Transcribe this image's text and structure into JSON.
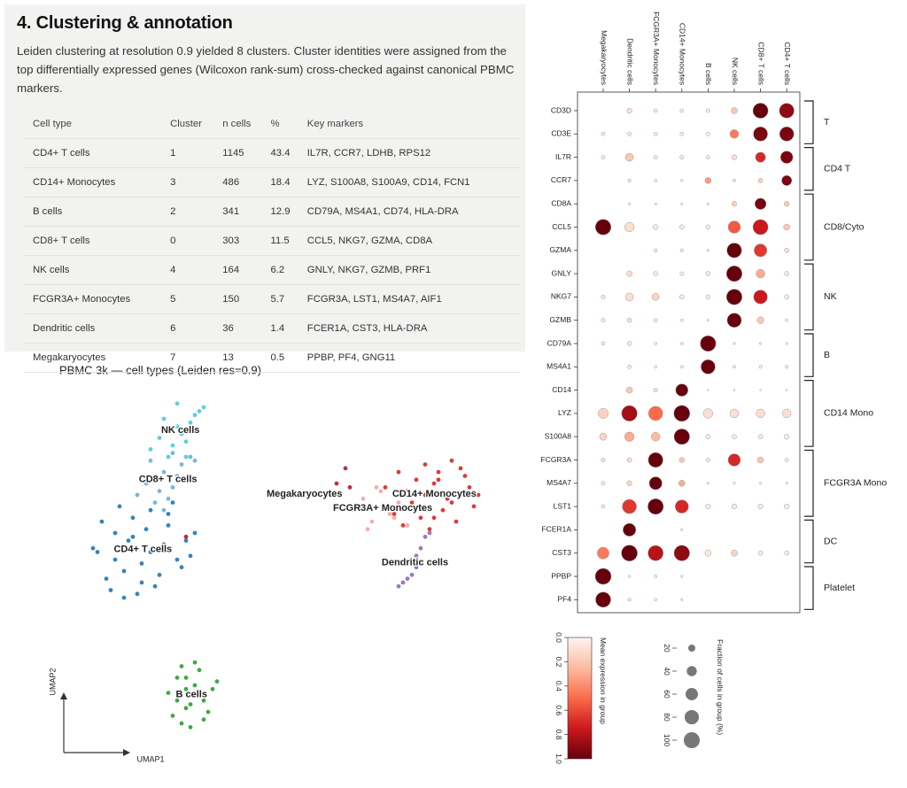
{
  "section": {
    "title": "4. Clustering & annotation",
    "text": "Leiden clustering at resolution 0.9 yielded 8 clusters. Cluster identities were assigned from the top differentially expressed genes (Wilcoxon rank-sum) cross-checked against canonical PBMC markers."
  },
  "table": {
    "columns": [
      "Cell type",
      "Cluster",
      "n cells",
      "%",
      "Key markers"
    ],
    "rows": [
      [
        "CD4+ T cells",
        1,
        1145,
        43.4,
        "IL7R, CCR7, LDHB, RPS12"
      ],
      [
        "CD14+ Monocytes",
        3,
        486,
        18.4,
        "LYZ, S100A8, S100A9, CD14, FCN1"
      ],
      [
        "B cells",
        2,
        341,
        12.9,
        "CD79A, MS4A1, CD74, HLA-DRA"
      ],
      [
        "CD8+ T cells",
        0,
        303,
        11.5,
        "CCL5, NKG7, GZMA, CD8A"
      ],
      [
        "NK cells",
        4,
        164,
        6.2,
        "GNLY, NKG7, GZMB, PRF1"
      ],
      [
        "FCGR3A+ Monocytes",
        5,
        150,
        5.7,
        "FCGR3A, LST1, MS4A7, AIF1"
      ],
      [
        "Dendritic cells",
        6,
        36,
        1.4,
        "FCER1A, CST3, HLA-DRA"
      ],
      [
        "Megakaryocytes",
        7,
        13,
        0.5,
        "PPBP, PF4, GNG11"
      ]
    ]
  },
  "chart_data": [
    {
      "type": "scatter",
      "title": "PBMC 3k — cell types (Leiden res=0.9)",
      "x_label": "UMAP1",
      "y_label": "UMAP2",
      "xlim": [
        0,
        100
      ],
      "ylim": [
        0,
        100
      ],
      "series": [
        {
          "name": "CD4+ T cells",
          "color": "#1f77b4",
          "x": [
            10,
            14,
            18,
            22,
            26,
            30,
            12,
            16,
            20,
            24,
            28,
            9,
            13,
            17,
            21,
            25,
            29,
            32,
            11,
            15,
            19,
            23,
            27,
            31,
            14,
            18,
            22,
            26,
            16,
            20
          ],
          "y": [
            55,
            60,
            64,
            66,
            62,
            58,
            48,
            50,
            52,
            49,
            53,
            56,
            45,
            58,
            61,
            57,
            51,
            60,
            63,
            67,
            44,
            46,
            68,
            54,
            53,
            59,
            55,
            65,
            43,
            47
          ]
        },
        {
          "name": "CD8+ T cells",
          "color": "#6aaed6",
          "x": [
            19,
            21,
            23,
            25,
            27,
            29,
            31,
            22,
            24,
            26,
            28,
            30,
            32,
            25,
            27
          ],
          "y": [
            70,
            73,
            68,
            76,
            72,
            78,
            80,
            79,
            71,
            69,
            75,
            74,
            79,
            66,
            81
          ]
        },
        {
          "name": "NK cells",
          "color": "#4ccbdc",
          "x": [
            22,
            24,
            26,
            28,
            30,
            32,
            34,
            25,
            27,
            29,
            31,
            33,
            28,
            30,
            32
          ],
          "y": [
            82,
            85,
            80,
            88,
            84,
            91,
            93,
            90,
            83,
            86,
            89,
            92,
            94,
            80,
            87
          ]
        },
        {
          "name": "B cells",
          "color": "#2ca02c",
          "x": [
            26,
            28,
            30,
            32,
            34,
            36,
            27,
            29,
            31,
            33,
            35,
            37,
            28,
            30,
            32,
            34,
            29,
            31,
            33,
            30
          ],
          "y": [
            18,
            22,
            14,
            20,
            16,
            19,
            12,
            25,
            9,
            24,
            13,
            21,
            16,
            19,
            26,
            11,
            10,
            15,
            18,
            22
          ]
        },
        {
          "name": "CD14+ Monocytes",
          "color": "#d62728",
          "x": [
            75,
            78,
            81,
            84,
            87,
            90,
            93,
            96,
            77,
            80,
            83,
            86,
            89,
            92,
            95,
            79,
            82,
            85,
            88,
            91,
            94,
            84,
            87,
            90,
            86
          ],
          "y": [
            72,
            76,
            68,
            78,
            74,
            79,
            75,
            70,
            65,
            71,
            64,
            73,
            69,
            77,
            67,
            62,
            74,
            61,
            66,
            63,
            72,
            70,
            76,
            68,
            64
          ]
        },
        {
          "name": "FCGR3A+ Monocytes",
          "color": "#f4a6a4",
          "x": [
            68,
            70,
            72,
            74,
            76,
            78,
            80,
            71,
            73,
            75,
            77,
            79
          ],
          "y": [
            66,
            69,
            63,
            71,
            65,
            68,
            62,
            61,
            72,
            67,
            64,
            70
          ]
        },
        {
          "name": "Dendritic cells",
          "color": "#9467bd",
          "x": [
            84,
            83,
            82,
            82,
            81,
            80,
            79,
            78,
            85,
            83
          ],
          "y": [
            59,
            56,
            54,
            51,
            49,
            48,
            47,
            46,
            60,
            52
          ]
        },
        {
          "name": "Megakaryocytes",
          "color": "#b2182b",
          "x": [
            66,
            64,
            67,
            30
          ],
          "y": [
            77,
            73,
            72,
            59
          ]
        }
      ]
    },
    {
      "type": "dotplot",
      "categories": [
        "Megakaryocytes",
        "Dendritic cells",
        "FCGR3A+ Monocytes",
        "CD14+ Monocytes",
        "B cells",
        "NK cells",
        "CD8+ T cells",
        "CD4+ T cells"
      ],
      "series": [
        {
          "name": "CD3D",
          "values": [
            0,
            0.1,
            0.05,
            0.05,
            0.03,
            0.2,
            1,
            0.9
          ],
          "sizes": [
            0,
            10,
            5,
            5,
            5,
            15,
            90,
            85
          ]
        },
        {
          "name": "CD3E",
          "values": [
            0.05,
            0.05,
            0.05,
            0.05,
            0.03,
            0.45,
            0.95,
            0.95
          ],
          "sizes": [
            5,
            6,
            5,
            5,
            5,
            30,
            80,
            80
          ]
        },
        {
          "name": "IL7R",
          "values": [
            0.05,
            0.2,
            0.05,
            0.05,
            0.03,
            0.1,
            0.7,
            0.95
          ],
          "sizes": [
            5,
            25,
            5,
            6,
            5,
            10,
            40,
            60
          ]
        },
        {
          "name": "CCR7",
          "values": [
            0,
            0.05,
            0.02,
            0.02,
            0.35,
            0.05,
            0.15,
            0.95
          ],
          "sizes": [
            0,
            4,
            3,
            2,
            15,
            3,
            8,
            40
          ]
        },
        {
          "name": "CD8A",
          "values": [
            0,
            0.02,
            0.02,
            0.02,
            0.02,
            0.15,
            0.95,
            0.2
          ],
          "sizes": [
            0,
            2,
            2,
            2,
            2,
            10,
            50,
            10
          ]
        },
        {
          "name": "CCL5",
          "values": [
            1,
            0.1,
            0.05,
            0.05,
            0.05,
            0.55,
            0.75,
            0.2
          ],
          "sizes": [
            95,
            35,
            10,
            8,
            8,
            60,
            90,
            15
          ]
        },
        {
          "name": "GZMA",
          "values": [
            0,
            0,
            0.05,
            0.05,
            0.02,
            1,
            0.65,
            0.1
          ],
          "sizes": [
            0,
            0,
            4,
            4,
            2,
            85,
            65,
            8
          ]
        },
        {
          "name": "GNLY",
          "values": [
            0,
            0.1,
            0.05,
            0.05,
            0.05,
            1,
            0.3,
            0.05
          ],
          "sizes": [
            0,
            12,
            8,
            6,
            8,
            95,
            30,
            8
          ]
        },
        {
          "name": "NKG7",
          "values": [
            0.05,
            0.1,
            0.15,
            0.05,
            0.05,
            1,
            0.75,
            0.05
          ],
          "sizes": [
            6,
            25,
            20,
            8,
            8,
            95,
            75,
            8
          ]
        },
        {
          "name": "GZMB",
          "values": [
            0.05,
            0.1,
            0.05,
            0.02,
            0.02,
            1,
            0.2,
            0.02
          ],
          "sizes": [
            6,
            8,
            5,
            3,
            2,
            80,
            18,
            3
          ]
        },
        {
          "name": "CD79A",
          "values": [
            0.05,
            0.05,
            0.03,
            0.03,
            1,
            0.02,
            0.02,
            0.02
          ],
          "sizes": [
            5,
            8,
            3,
            3,
            95,
            2,
            2,
            2
          ]
        },
        {
          "name": "MS4A1",
          "values": [
            0,
            0.05,
            0.03,
            0.03,
            1,
            0.03,
            0.03,
            0.03
          ],
          "sizes": [
            0,
            5,
            3,
            3,
            80,
            3,
            4,
            4
          ]
        },
        {
          "name": "CD14",
          "values": [
            0,
            0.2,
            0.1,
            1,
            0.02,
            0.02,
            0.02,
            0.02
          ],
          "sizes": [
            0,
            15,
            6,
            60,
            1,
            1,
            1,
            1
          ]
        },
        {
          "name": "LYZ",
          "values": [
            0.15,
            0.85,
            0.5,
            1,
            0.1,
            0.1,
            0.1,
            0.1
          ],
          "sizes": [
            40,
            95,
            80,
            100,
            35,
            30,
            30,
            30
          ]
        },
        {
          "name": "S100A8",
          "values": [
            0.15,
            0.3,
            0.25,
            1,
            0.05,
            0.05,
            0.05,
            0.05
          ],
          "sizes": [
            20,
            35,
            30,
            95,
            8,
            8,
            8,
            10
          ]
        },
        {
          "name": "FCGR3A",
          "values": [
            0.1,
            0.1,
            1,
            0.2,
            0.05,
            0.7,
            0.2,
            0.05
          ],
          "sizes": [
            6,
            8,
            85,
            10,
            5,
            60,
            15,
            5
          ]
        },
        {
          "name": "MS4A7",
          "values": [
            0.05,
            0.15,
            1,
            0.3,
            0.02,
            0.02,
            0.02,
            0.02
          ],
          "sizes": [
            5,
            10,
            65,
            15,
            2,
            2,
            2,
            2
          ]
        },
        {
          "name": "LST1",
          "values": [
            0.05,
            0.65,
            1,
            0.7,
            0.05,
            0.05,
            0.05,
            0.05
          ],
          "sizes": [
            5,
            80,
            95,
            70,
            10,
            10,
            10,
            10
          ]
        },
        {
          "name": "FCER1A",
          "values": [
            0,
            1,
            0,
            0.02,
            0,
            0,
            0,
            0
          ],
          "sizes": [
            0,
            65,
            0,
            2,
            0,
            0,
            0,
            0
          ]
        },
        {
          "name": "CST3",
          "values": [
            0.45,
            1,
            0.8,
            0.9,
            0.05,
            0.15,
            0.05,
            0.05
          ],
          "sizes": [
            55,
            100,
            90,
            95,
            15,
            15,
            8,
            8
          ]
        },
        {
          "name": "PPBP",
          "values": [
            1,
            0.02,
            0.05,
            0.02,
            0,
            0,
            0,
            0
          ],
          "sizes": [
            100,
            2,
            3,
            2,
            0,
            0,
            0,
            0
          ]
        },
        {
          "name": "PF4",
          "values": [
            1,
            0.05,
            0.03,
            0.02,
            0,
            0,
            0,
            0
          ],
          "sizes": [
            90,
            4,
            3,
            2,
            0,
            0,
            0,
            0
          ]
        }
      ],
      "var_groups": [
        {
          "label": "T",
          "positions": [
            0,
            1
          ]
        },
        {
          "label": "CD4 T",
          "positions": [
            2,
            3
          ]
        },
        {
          "label": "CD8/Cyto",
          "positions": [
            4,
            6
          ]
        },
        {
          "label": "NK",
          "positions": [
            7,
            9
          ]
        },
        {
          "label": "B",
          "positions": [
            10,
            11
          ]
        },
        {
          "label": "CD14 Mono",
          "positions": [
            12,
            14
          ]
        },
        {
          "label": "FCGR3A Mono",
          "positions": [
            15,
            17
          ]
        },
        {
          "label": "DC",
          "positions": [
            18,
            19
          ]
        },
        {
          "label": "Platelet",
          "positions": [
            20,
            21
          ]
        }
      ],
      "colorbar": {
        "title": "Mean expression in group",
        "lim": [
          0,
          1
        ],
        "ticks": [
          {
            "value": 0,
            "label": "0.0"
          },
          0.2,
          0.4,
          0.6,
          0.8,
          {
            "value": 1,
            "label": "1.0"
          }
        ],
        "colormap": [
          "#fff5f0",
          "#fcbba1",
          "#fb6a4a",
          "#cb181d",
          "#67000d"
        ]
      },
      "size_legend": {
        "title": "Fraction of cells in group (%)",
        "values": [
          20,
          40,
          60,
          80,
          100
        ]
      }
    }
  ]
}
